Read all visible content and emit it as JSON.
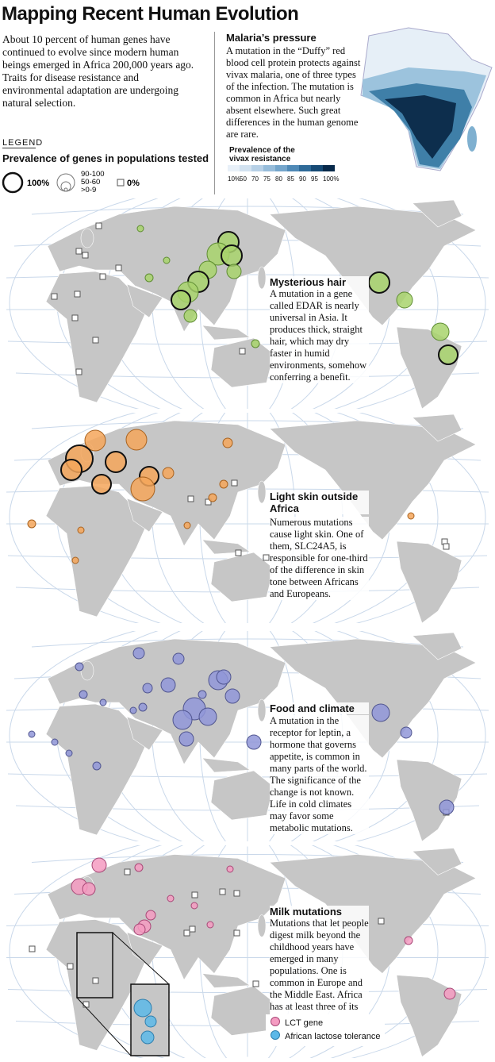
{
  "title": "Mapping Recent Human Evolution",
  "intro": "About 10 percent of human genes have continued to evolve since modern human beings emerged in Africa 200,000 years ago. Traits for disease resistance and environmental adaptation are undergoing natural selection.",
  "legend": {
    "heading": "LEGEND",
    "title": "Prevalence of genes in populations tested",
    "large": "100%",
    "sizes": [
      "90-100",
      "50-60",
      ">0-9"
    ],
    "zero": "0%"
  },
  "malaria": {
    "title": "Malaria’s pressure",
    "text": "A mutation in the “Duffy” red blood cell protein protects against vivax malaria, one of three types of the infection. The mutation is common in Africa but nearly absent elsewhere. Such great differences in the human genome are rare.",
    "scale_title": "Prevalence of the vivax resistance gene",
    "scale_labels": [
      "10%",
      "50",
      "70",
      "75",
      "80",
      "85",
      "90",
      "95",
      "100%"
    ]
  },
  "panels": [
    {
      "title": "Mysterious hair",
      "text": "A mutation in a gene called EDAR is nearly universal in Asia. It produces thick, straight hair, which may dry faster in humid environments, somehow conferring a benefit."
    },
    {
      "title": "Light skin outside Africa",
      "text": "Numerous mutations cause light skin. One of them, SLC24A5, is responsible for one-third of the difference in skin tone between Africans and Europeans."
    },
    {
      "title": "Food and climate",
      "text": "A mutation in the receptor for leptin, a hormone that governs appetite, is common in many parts of the world. The significance of the change is not known. Life in cold climates may favor some metabolic mutations."
    },
    {
      "title": "Milk mutations",
      "text": "Mutations that let people digest milk beyond the childhood years have emerged in many populations. One is common in Europe and the Middle East. Africa has at least three of its own."
    }
  ],
  "key": [
    "LCT gene",
    "African lactose tolerance"
  ]
}
